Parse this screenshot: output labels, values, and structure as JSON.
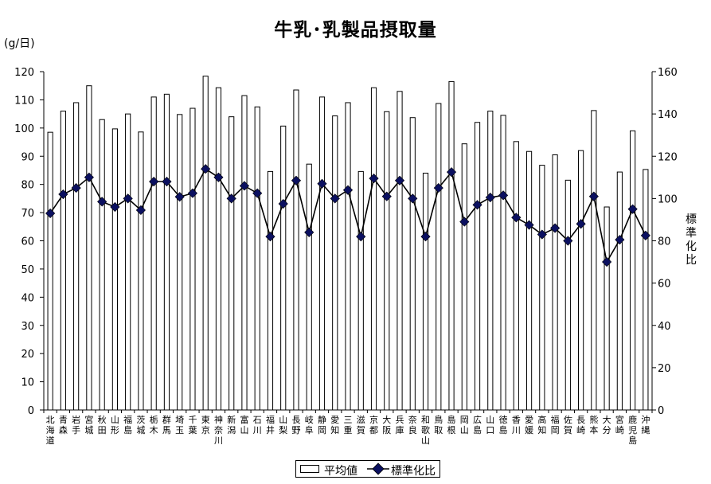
{
  "chart_data": {
    "type": "bar+line",
    "title": "牛乳･乳製品摂取量",
    "left_axis_unit": "(g/日)",
    "right_axis_label": "標準化比",
    "left_ylim": [
      0,
      120
    ],
    "left_ticks": [
      0,
      10,
      20,
      30,
      40,
      50,
      60,
      70,
      80,
      90,
      100,
      110,
      120
    ],
    "right_ylim": [
      0,
      160
    ],
    "right_ticks": [
      0,
      20,
      40,
      60,
      80,
      100,
      120,
      140,
      160
    ],
    "categories": [
      "北海道",
      "青森",
      "岩手",
      "宮城",
      "秋田",
      "山形",
      "福島",
      "茨城",
      "栃木",
      "群馬",
      "埼玉",
      "千葉",
      "東京",
      "神奈川",
      "新潟",
      "富山",
      "石川",
      "福井",
      "山梨",
      "長野",
      "岐阜",
      "静岡",
      "愛知",
      "三重",
      "滋賀",
      "京都",
      "大阪",
      "兵庫",
      "奈良",
      "和歌山",
      "鳥取",
      "島根",
      "岡山",
      "広島",
      "山口",
      "徳島",
      "香川",
      "愛媛",
      "高知",
      "福岡",
      "佐賀",
      "長崎",
      "熊本",
      "大分",
      "宮崎",
      "鹿児島",
      "沖縄"
    ],
    "series": [
      {
        "name": "平均値",
        "type": "bar",
        "axis": "left",
        "values": [
          98.5,
          106,
          109,
          115,
          103,
          99.7,
          105,
          98.6,
          111,
          112,
          104.8,
          107,
          118.4,
          114.3,
          104,
          111.5,
          107.5,
          84.6,
          100.7,
          113.5,
          87.2,
          111,
          104.3,
          109,
          84.6,
          114.3,
          105.8,
          113,
          103.7,
          84,
          108.7,
          116.5,
          94.4,
          102,
          106,
          104.5,
          95.2,
          91.7,
          86.8,
          90.5,
          81.5,
          92,
          106.2,
          72,
          84.4,
          99,
          85.3
        ]
      },
      {
        "name": "標準化比",
        "type": "line",
        "axis": "right",
        "values": [
          93,
          102,
          105,
          110,
          98.5,
          96,
          100,
          94.5,
          108,
          108,
          100.8,
          102.5,
          114,
          110,
          100,
          106,
          102.5,
          82,
          97.5,
          108.5,
          84,
          107,
          100,
          104,
          82,
          109.5,
          101,
          108.5,
          100,
          82,
          105,
          112.5,
          89,
          97,
          100.5,
          101.5,
          91,
          87.5,
          83,
          86,
          80,
          88,
          101,
          70,
          80.5,
          95,
          82.5
        ]
      }
    ],
    "legend": [
      "平均値",
      "標準化比"
    ],
    "legend_position": "bottom",
    "grid": false,
    "colors": {
      "bar_fill": "#ffffff",
      "bar_stroke": "#000000",
      "line": "#000000",
      "marker": "#0b1060"
    }
  }
}
